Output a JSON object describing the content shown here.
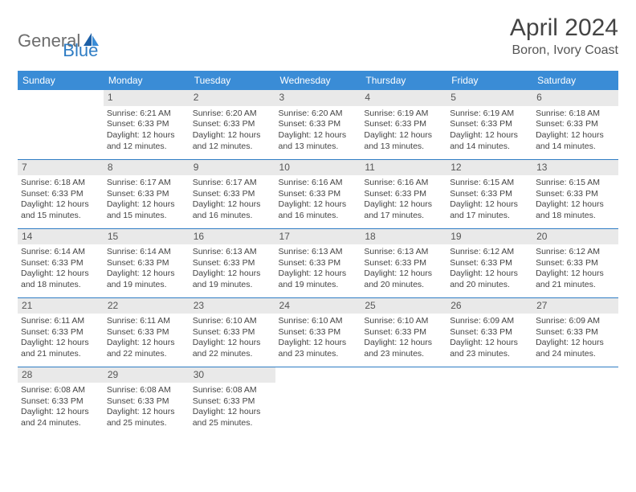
{
  "brand": {
    "general": "General",
    "blue": "Blue"
  },
  "title": "April 2024",
  "location": "Boron, Ivory Coast",
  "colors": {
    "header_bg": "#3a8cd6",
    "header_text": "#ffffff",
    "daynum_bg": "#e9e9e9",
    "separator": "#2f7dc4",
    "brand_grey": "#6d6d6d",
    "brand_blue": "#2f7dc4"
  },
  "weekdays": [
    "Sunday",
    "Monday",
    "Tuesday",
    "Wednesday",
    "Thursday",
    "Friday",
    "Saturday"
  ],
  "weeks": [
    [
      null,
      {
        "n": "1",
        "sr": "Sunrise: 6:21 AM",
        "ss": "Sunset: 6:33 PM",
        "dl": "Daylight: 12 hours and 12 minutes."
      },
      {
        "n": "2",
        "sr": "Sunrise: 6:20 AM",
        "ss": "Sunset: 6:33 PM",
        "dl": "Daylight: 12 hours and 12 minutes."
      },
      {
        "n": "3",
        "sr": "Sunrise: 6:20 AM",
        "ss": "Sunset: 6:33 PM",
        "dl": "Daylight: 12 hours and 13 minutes."
      },
      {
        "n": "4",
        "sr": "Sunrise: 6:19 AM",
        "ss": "Sunset: 6:33 PM",
        "dl": "Daylight: 12 hours and 13 minutes."
      },
      {
        "n": "5",
        "sr": "Sunrise: 6:19 AM",
        "ss": "Sunset: 6:33 PM",
        "dl": "Daylight: 12 hours and 14 minutes."
      },
      {
        "n": "6",
        "sr": "Sunrise: 6:18 AM",
        "ss": "Sunset: 6:33 PM",
        "dl": "Daylight: 12 hours and 14 minutes."
      }
    ],
    [
      {
        "n": "7",
        "sr": "Sunrise: 6:18 AM",
        "ss": "Sunset: 6:33 PM",
        "dl": "Daylight: 12 hours and 15 minutes."
      },
      {
        "n": "8",
        "sr": "Sunrise: 6:17 AM",
        "ss": "Sunset: 6:33 PM",
        "dl": "Daylight: 12 hours and 15 minutes."
      },
      {
        "n": "9",
        "sr": "Sunrise: 6:17 AM",
        "ss": "Sunset: 6:33 PM",
        "dl": "Daylight: 12 hours and 16 minutes."
      },
      {
        "n": "10",
        "sr": "Sunrise: 6:16 AM",
        "ss": "Sunset: 6:33 PM",
        "dl": "Daylight: 12 hours and 16 minutes."
      },
      {
        "n": "11",
        "sr": "Sunrise: 6:16 AM",
        "ss": "Sunset: 6:33 PM",
        "dl": "Daylight: 12 hours and 17 minutes."
      },
      {
        "n": "12",
        "sr": "Sunrise: 6:15 AM",
        "ss": "Sunset: 6:33 PM",
        "dl": "Daylight: 12 hours and 17 minutes."
      },
      {
        "n": "13",
        "sr": "Sunrise: 6:15 AM",
        "ss": "Sunset: 6:33 PM",
        "dl": "Daylight: 12 hours and 18 minutes."
      }
    ],
    [
      {
        "n": "14",
        "sr": "Sunrise: 6:14 AM",
        "ss": "Sunset: 6:33 PM",
        "dl": "Daylight: 12 hours and 18 minutes."
      },
      {
        "n": "15",
        "sr": "Sunrise: 6:14 AM",
        "ss": "Sunset: 6:33 PM",
        "dl": "Daylight: 12 hours and 19 minutes."
      },
      {
        "n": "16",
        "sr": "Sunrise: 6:13 AM",
        "ss": "Sunset: 6:33 PM",
        "dl": "Daylight: 12 hours and 19 minutes."
      },
      {
        "n": "17",
        "sr": "Sunrise: 6:13 AM",
        "ss": "Sunset: 6:33 PM",
        "dl": "Daylight: 12 hours and 19 minutes."
      },
      {
        "n": "18",
        "sr": "Sunrise: 6:13 AM",
        "ss": "Sunset: 6:33 PM",
        "dl": "Daylight: 12 hours and 20 minutes."
      },
      {
        "n": "19",
        "sr": "Sunrise: 6:12 AM",
        "ss": "Sunset: 6:33 PM",
        "dl": "Daylight: 12 hours and 20 minutes."
      },
      {
        "n": "20",
        "sr": "Sunrise: 6:12 AM",
        "ss": "Sunset: 6:33 PM",
        "dl": "Daylight: 12 hours and 21 minutes."
      }
    ],
    [
      {
        "n": "21",
        "sr": "Sunrise: 6:11 AM",
        "ss": "Sunset: 6:33 PM",
        "dl": "Daylight: 12 hours and 21 minutes."
      },
      {
        "n": "22",
        "sr": "Sunrise: 6:11 AM",
        "ss": "Sunset: 6:33 PM",
        "dl": "Daylight: 12 hours and 22 minutes."
      },
      {
        "n": "23",
        "sr": "Sunrise: 6:10 AM",
        "ss": "Sunset: 6:33 PM",
        "dl": "Daylight: 12 hours and 22 minutes."
      },
      {
        "n": "24",
        "sr": "Sunrise: 6:10 AM",
        "ss": "Sunset: 6:33 PM",
        "dl": "Daylight: 12 hours and 23 minutes."
      },
      {
        "n": "25",
        "sr": "Sunrise: 6:10 AM",
        "ss": "Sunset: 6:33 PM",
        "dl": "Daylight: 12 hours and 23 minutes."
      },
      {
        "n": "26",
        "sr": "Sunrise: 6:09 AM",
        "ss": "Sunset: 6:33 PM",
        "dl": "Daylight: 12 hours and 23 minutes."
      },
      {
        "n": "27",
        "sr": "Sunrise: 6:09 AM",
        "ss": "Sunset: 6:33 PM",
        "dl": "Daylight: 12 hours and 24 minutes."
      }
    ],
    [
      {
        "n": "28",
        "sr": "Sunrise: 6:08 AM",
        "ss": "Sunset: 6:33 PM",
        "dl": "Daylight: 12 hours and 24 minutes."
      },
      {
        "n": "29",
        "sr": "Sunrise: 6:08 AM",
        "ss": "Sunset: 6:33 PM",
        "dl": "Daylight: 12 hours and 25 minutes."
      },
      {
        "n": "30",
        "sr": "Sunrise: 6:08 AM",
        "ss": "Sunset: 6:33 PM",
        "dl": "Daylight: 12 hours and 25 minutes."
      },
      null,
      null,
      null,
      null
    ]
  ]
}
